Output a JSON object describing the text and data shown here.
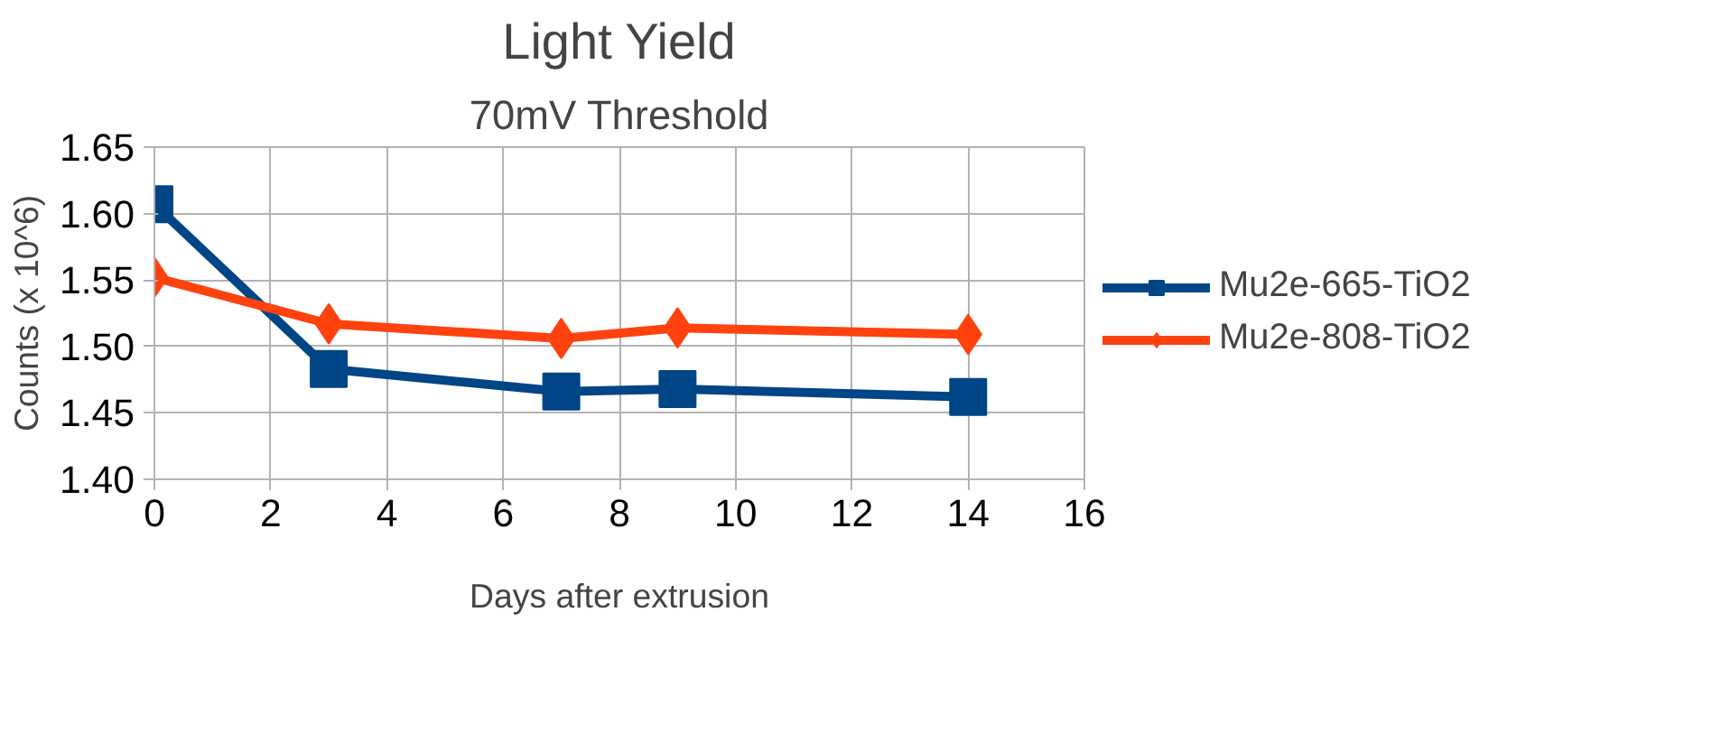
{
  "chart_data": {
    "type": "line",
    "title": "Light Yield",
    "subtitle": "70mV Threshold",
    "xlabel": "Days after extrusion",
    "ylabel": "Counts (x 10^6)",
    "x": [
      0,
      3,
      7,
      9,
      14
    ],
    "series": [
      {
        "name": "Mu2e-665-TiO2",
        "color": "#004586",
        "marker": "square",
        "values": [
          1.607,
          1.483,
          1.466,
          1.468,
          1.462
        ]
      },
      {
        "name": "Mu2e-808-TiO2",
        "color": "#ff420e",
        "marker": "diamond",
        "values": [
          1.552,
          1.517,
          1.506,
          1.514,
          1.509
        ]
      }
    ],
    "xlim": [
      0,
      16
    ],
    "xticks": [
      0,
      2,
      4,
      6,
      8,
      10,
      12,
      14,
      16
    ],
    "ylim": [
      1.4,
      1.65
    ],
    "yticks": [
      {
        "value": 1.4,
        "label": "1.40"
      },
      {
        "value": 1.45,
        "label": "1.45"
      },
      {
        "value": 1.5,
        "label": "1.50"
      },
      {
        "value": 1.55,
        "label": "1.55"
      },
      {
        "value": 1.6,
        "label": "1.60"
      },
      {
        "value": 1.65,
        "label": "1.65"
      }
    ],
    "grid": true,
    "legend": "right",
    "line_style": "solid"
  }
}
